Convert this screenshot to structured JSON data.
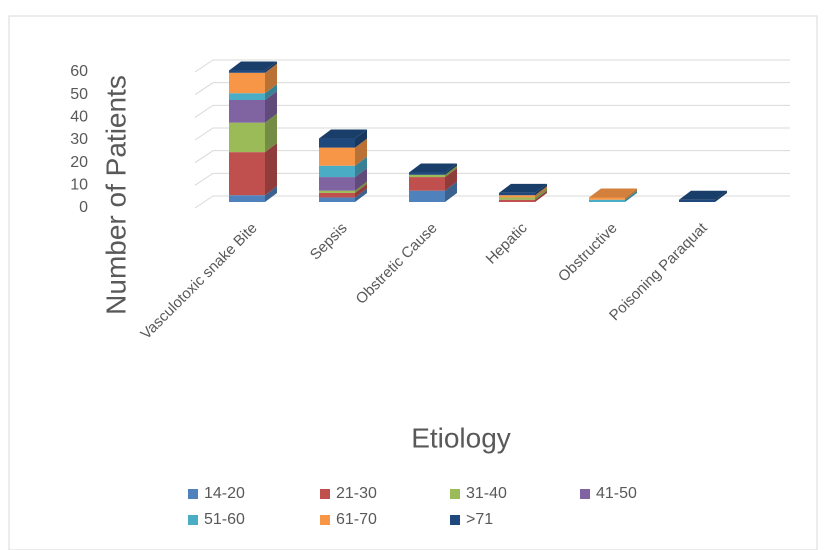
{
  "chart_data": {
    "type": "bar3d_stacked",
    "y_label": "Number of Patients",
    "x_label": "Etiology",
    "categories": [
      "Vasculotoxic snake Bite",
      "Sepsis",
      "Obstretic Cause",
      "Hepatic",
      "Obstructive",
      "Poisoning Paraquat"
    ],
    "series": [
      {
        "name": "14-20",
        "color": "#4f81bd",
        "values": [
          3,
          2,
          5,
          0,
          0,
          0
        ]
      },
      {
        "name": "21-30",
        "color": "#c0504d",
        "values": [
          19,
          2,
          6,
          1,
          0,
          0
        ]
      },
      {
        "name": "31-40",
        "color": "#9bbb59",
        "values": [
          13,
          1,
          1,
          1,
          0,
          0
        ]
      },
      {
        "name": "41-50",
        "color": "#8064a2",
        "values": [
          10,
          6,
          0,
          0,
          0,
          0
        ]
      },
      {
        "name": "51-60",
        "color": "#4bacc6",
        "values": [
          3,
          5,
          0,
          0,
          1,
          0
        ]
      },
      {
        "name": "61-70",
        "color": "#f79646",
        "values": [
          9,
          8,
          0,
          1,
          1,
          0
        ]
      },
      {
        "name": ">71",
        "color": "#1f497d",
        "values": [
          1,
          4,
          1,
          1,
          0,
          1
        ]
      }
    ],
    "ylim": [
      0,
      60
    ],
    "yticks": [
      0,
      10,
      20,
      30,
      40,
      50,
      60
    ],
    "grid": true,
    "legend": "bottom"
  }
}
